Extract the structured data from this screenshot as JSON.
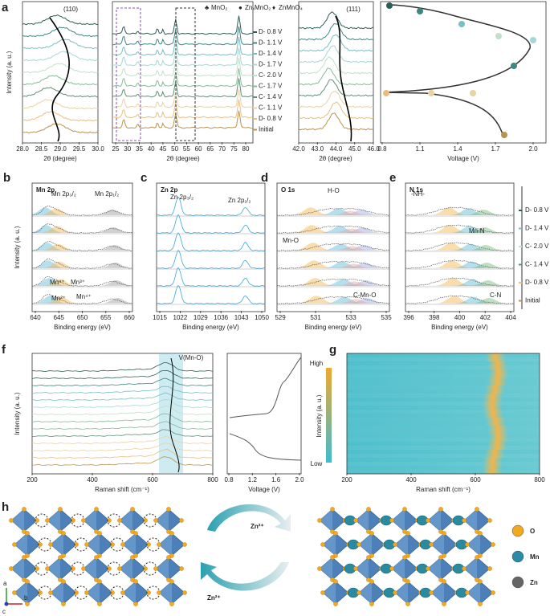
{
  "panels": {
    "a": {
      "label": "a",
      "left": {
        "y_label": "Intensity (a. u.)",
        "x_label": "2θ (degree)",
        "x_ticks": [
          "28.0",
          "28.5",
          "29.0",
          "29.5",
          "30.0"
        ],
        "annotation": "(110)"
      },
      "middle": {
        "x_label": "2θ (degree)",
        "x_ticks": [
          "25",
          "30",
          "35",
          "40",
          "45",
          "50",
          "55",
          "60",
          "65",
          "70",
          "75",
          "80"
        ],
        "legend": [
          "MnO₂",
          "ZnₓMnO₂",
          "ZnMnO₄"
        ],
        "states": [
          "D- 0.8 V",
          "D- 1.1 V",
          "D- 1.4 V",
          "D- 1.7 V",
          "C- 2.0 V",
          "C- 1.7 V",
          "C- 1.4 V",
          "C- 1.1 V",
          "D- 0.8 V",
          "Initial"
        ]
      },
      "right": {
        "x_label": "2θ (degree)",
        "x_ticks": [
          "42.0",
          "43.0",
          "44.0",
          "45.0",
          "46.0"
        ],
        "annotation": "(111)"
      },
      "voltage": {
        "x_label": "Voltage (V)",
        "x_ticks": [
          "0.8",
          "1.1",
          "1.4",
          "1.7",
          "2.0"
        ]
      }
    },
    "b": {
      "label": "b",
      "title": "Mn 2p",
      "peaks": [
        "Mn 2p₃/₂",
        "Mn 2p₁/₂"
      ],
      "species": [
        "Mn⁴⁺",
        "Mn³⁺",
        "Mn²⁺",
        "Mn⁴⁺"
      ],
      "x_label": "Binding energy (eV)",
      "y_label": "Intensity (a. u.)",
      "x_ticks": [
        "640",
        "645",
        "650",
        "655",
        "660"
      ]
    },
    "c": {
      "label": "c",
      "title": "Zn 2p",
      "peaks": [
        "Zn 2p₃/₂",
        "Zn 2p₁/₂"
      ],
      "x_label": "Binding energy (eV)",
      "x_ticks": [
        "1015",
        "1022",
        "1029",
        "1036",
        "1043",
        "1050"
      ]
    },
    "d": {
      "label": "d",
      "title": "O 1s",
      "species": [
        "H-O",
        "Mn-O",
        "C-Mn-O"
      ],
      "x_label": "Binding energy (eV)",
      "x_ticks": [
        "529",
        "531",
        "533",
        "535"
      ]
    },
    "e": {
      "label": "e",
      "title": "N 1s",
      "species": [
        "-NH-",
        "Mn-N",
        "C-N"
      ],
      "x_label": "Binding energy (eV)",
      "x_ticks": [
        "396",
        "398",
        "400",
        "402",
        "404"
      ],
      "states": [
        "D- 0.8 V",
        "D- 1.4 V",
        "C- 2.0 V",
        "C- 1.4 V",
        "D- 0.8 V",
        "Initial"
      ]
    },
    "f": {
      "label": "f",
      "y_label": "Intensity (a. u.)",
      "x_label": "Raman shift (cm⁻¹)",
      "x_ticks": [
        "200",
        "400",
        "600",
        "800"
      ],
      "annotation": "V(Mn-O)",
      "voltage": {
        "x_label": "Voltage (V)",
        "x_ticks": [
          "0.8",
          "1.2",
          "1.6",
          "2.0"
        ]
      }
    },
    "g": {
      "label": "g",
      "x_label": "Raman shift (cm⁻¹)",
      "x_ticks": [
        "200",
        "400",
        "600",
        "800"
      ],
      "colorbar": {
        "high": "High",
        "low": "Low",
        "label": "Intensity (a. u.)"
      }
    },
    "h": {
      "label": "h",
      "ion_top": "Zn²⁺",
      "ion_bottom": "Zn²⁺",
      "legend": [
        "O",
        "Mn",
        "Zn"
      ],
      "axes": [
        "a",
        "b",
        "c"
      ]
    }
  }
}
